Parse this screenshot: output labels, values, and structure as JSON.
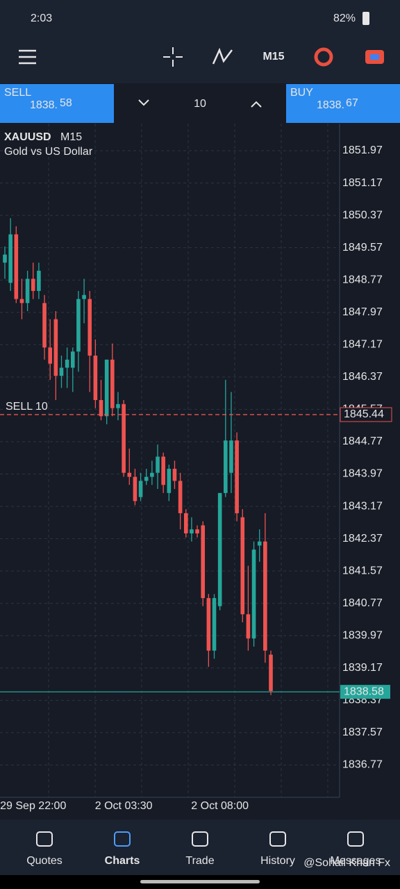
{
  "status_bar": {
    "time": "2:03",
    "battery": "82%"
  },
  "toolbar": {
    "timeframe": "M15"
  },
  "trade_panel": {
    "sell_label": "SELL",
    "sell_price_main": "1838.",
    "sell_price_big": "58",
    "volume": "10",
    "buy_label": "BUY",
    "buy_price_main": "1838.",
    "buy_price_big": "67"
  },
  "chart_data": {
    "type": "candlestick",
    "symbol": "XAUUSD",
    "timeframe": "M15",
    "description": "Gold vs US Dollar",
    "up_color": "#26a69a",
    "down_color": "#ef5350",
    "grid": true,
    "ylim": [
      1835.97,
      1852.64
    ],
    "yticks": [
      1851.97,
      1851.17,
      1850.37,
      1849.57,
      1848.77,
      1847.97,
      1847.17,
      1846.37,
      1845.57,
      1844.77,
      1843.97,
      1843.17,
      1842.37,
      1841.57,
      1840.77,
      1839.97,
      1839.17,
      1838.37,
      1837.57,
      1836.77
    ],
    "categories": [
      null,
      null,
      null,
      null,
      null,
      "29 Sep 22:00",
      null,
      null,
      null,
      null,
      null,
      null,
      null,
      null,
      null,
      null,
      null,
      null,
      null,
      null,
      null,
      "2 Oct 03:30",
      null,
      null,
      null,
      null,
      null,
      null,
      null,
      null,
      null,
      null,
      null,
      null,
      null,
      null,
      null,
      null,
      "2 Oct 08:00",
      null,
      null,
      null,
      null,
      null,
      null,
      null,
      null,
      null
    ],
    "open": [
      1849.2,
      1848.7,
      1849.9,
      1848.3,
      1848.2,
      1848.8,
      1848.5,
      1848.2,
      1847.1,
      1847.8,
      1846.4,
      1846.6,
      1846.6,
      1847.0,
      1848.3,
      1848.3,
      1846.9,
      1845.8,
      1845.4,
      1846.8,
      1845.6,
      1845.7,
      1844.0,
      1843.9,
      1843.4,
      1843.8,
      1843.9,
      1844.0,
      1844.4,
      1843.5,
      1844.1,
      1843.8,
      1843.0,
      1842.5,
      1842.6,
      1842.7,
      1840.9,
      1839.6,
      1840.7,
      1843.5,
      1844.0,
      1844.8,
      1842.9,
      1840.5,
      1839.9,
      1842.2,
      1842.3,
      1839.5
    ],
    "high": [
      1849.6,
      1850.3,
      1850.1,
      1848.8,
      1849.0,
      1849.2,
      1849.2,
      1848.4,
      1847.8,
      1848.0,
      1846.9,
      1847.1,
      1847.1,
      1848.5,
      1848.8,
      1848.5,
      1847.3,
      1846.3,
      1846.8,
      1847.2,
      1846.0,
      1845.8,
      1844.6,
      1844.1,
      1844.0,
      1844.1,
      1844.3,
      1844.7,
      1844.5,
      1844.2,
      1844.3,
      1844.0,
      1843.1,
      1842.9,
      1842.7,
      1842.8,
      1841.0,
      1841.0,
      1843.5,
      1846.3,
      1846.0,
      1845.0,
      1843.1,
      1841.7,
      1842.3,
      1842.6,
      1843.0,
      1839.6
    ],
    "low": [
      1848.8,
      1848.5,
      1848.2,
      1847.8,
      1848.0,
      1848.3,
      1848.3,
      1846.8,
      1846.3,
      1845.8,
      1846.1,
      1846.1,
      1846.0,
      1846.5,
      1847.7,
      1846.0,
      1845.6,
      1845.3,
      1845.2,
      1845.4,
      1845.3,
      1843.9,
      1843.7,
      1843.2,
      1843.3,
      1843.7,
      1843.7,
      1843.6,
      1843.5,
      1843.3,
      1843.6,
      1842.6,
      1842.4,
      1842.3,
      1842.4,
      1840.7,
      1839.2,
      1839.4,
      1840.6,
      1843.4,
      1843.5,
      1842.8,
      1840.3,
      1839.6,
      1839.7,
      1841.8,
      1839.3,
      1838.5
    ],
    "close": [
      1849.4,
      1849.9,
      1848.3,
      1848.2,
      1848.8,
      1848.5,
      1849.0,
      1847.1,
      1846.7,
      1846.4,
      1846.6,
      1846.8,
      1847.0,
      1848.3,
      1848.4,
      1846.9,
      1845.8,
      1845.4,
      1846.8,
      1845.6,
      1845.7,
      1844.0,
      1843.9,
      1843.3,
      1843.8,
      1843.9,
      1844.0,
      1844.4,
      1843.7,
      1844.1,
      1843.8,
      1843.0,
      1842.5,
      1842.6,
      1842.5,
      1840.9,
      1839.6,
      1840.9,
      1843.5,
      1844.8,
      1844.8,
      1843.0,
      1840.5,
      1839.9,
      1842.1,
      1842.3,
      1839.6,
      1838.6
    ],
    "order_line": {
      "label": "SELL 10",
      "value": 1845.44,
      "value_label": "1845.44",
      "color": "#ef5350"
    },
    "bid_line": {
      "value": 1838.58,
      "value_label": "1838.58",
      "color": "#26a69a"
    }
  },
  "bottom_nav": [
    "Quotes",
    "Charts",
    "Trade",
    "History",
    "Messages"
  ],
  "watermark": "@Sohail Khan Fx"
}
